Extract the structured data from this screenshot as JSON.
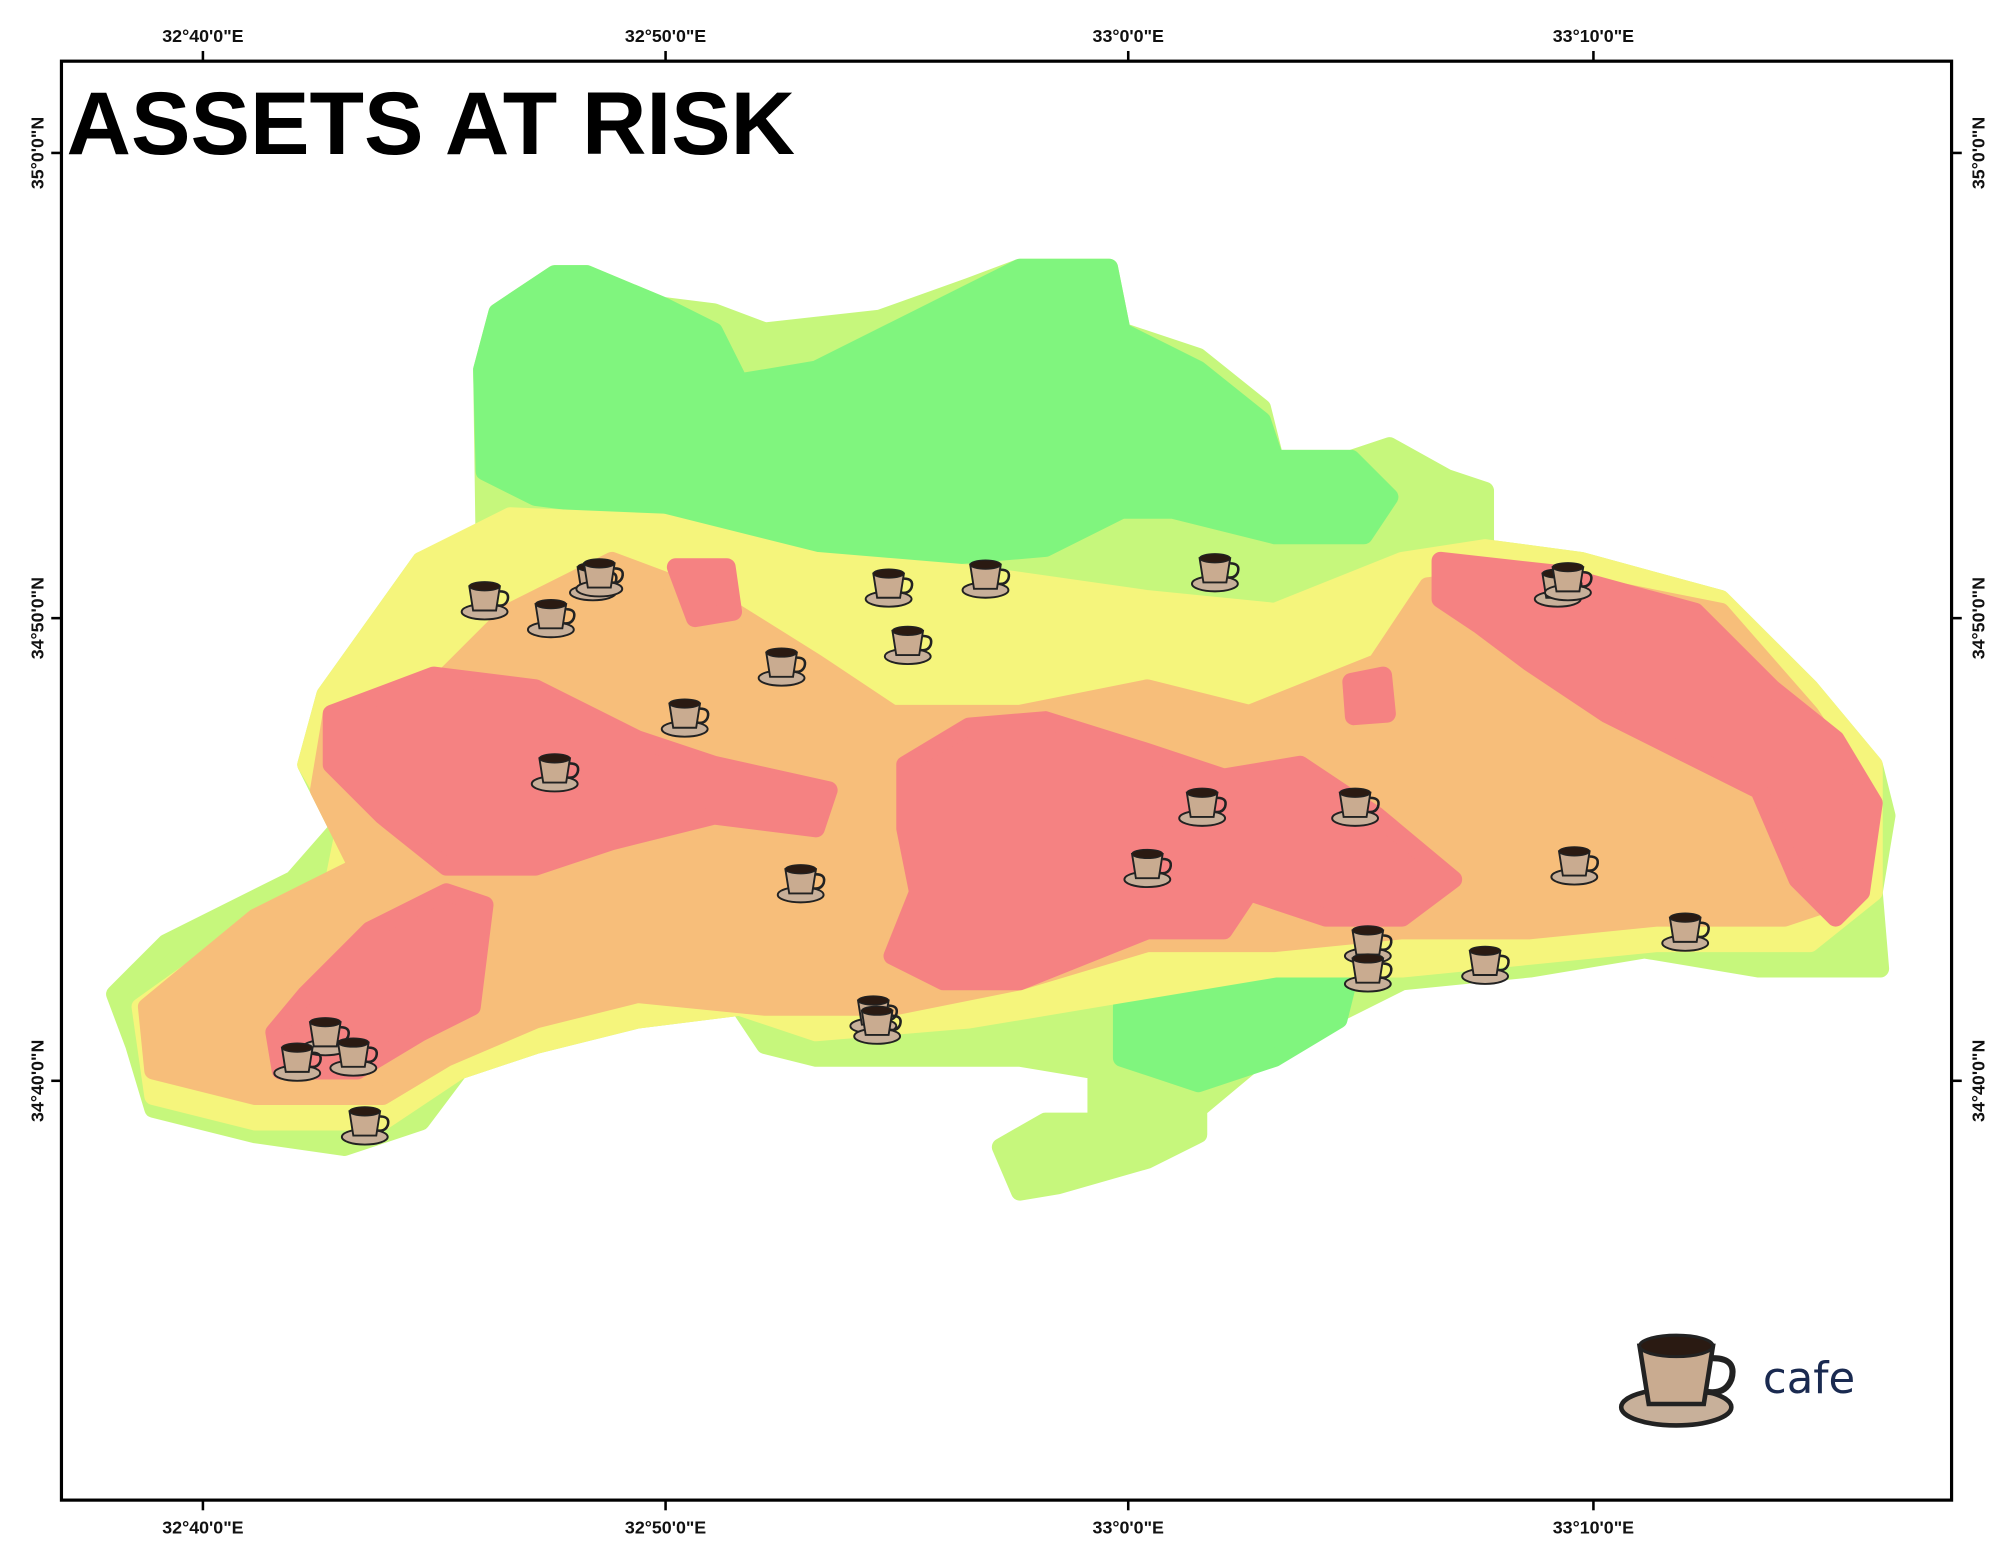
{
  "map": {
    "title": "ASSETS AT RISK",
    "x_ticks": [
      "32°40'0\"E",
      "32°50'0\"E",
      "33°0'0\"E",
      "33°10'0\"E"
    ],
    "y_ticks": [
      "35°0'0\"N",
      "34°50'0\"N",
      "34°40'0\"N"
    ],
    "legend": {
      "icon": "coffee-cup-icon",
      "label": "cafe"
    },
    "risk_colors": {
      "low": "#80f57e",
      "low_moderate": "#c6f77c",
      "moderate": "#f5f57c",
      "high": "#f7be7a",
      "very_high": "#f58282"
    }
  }
}
